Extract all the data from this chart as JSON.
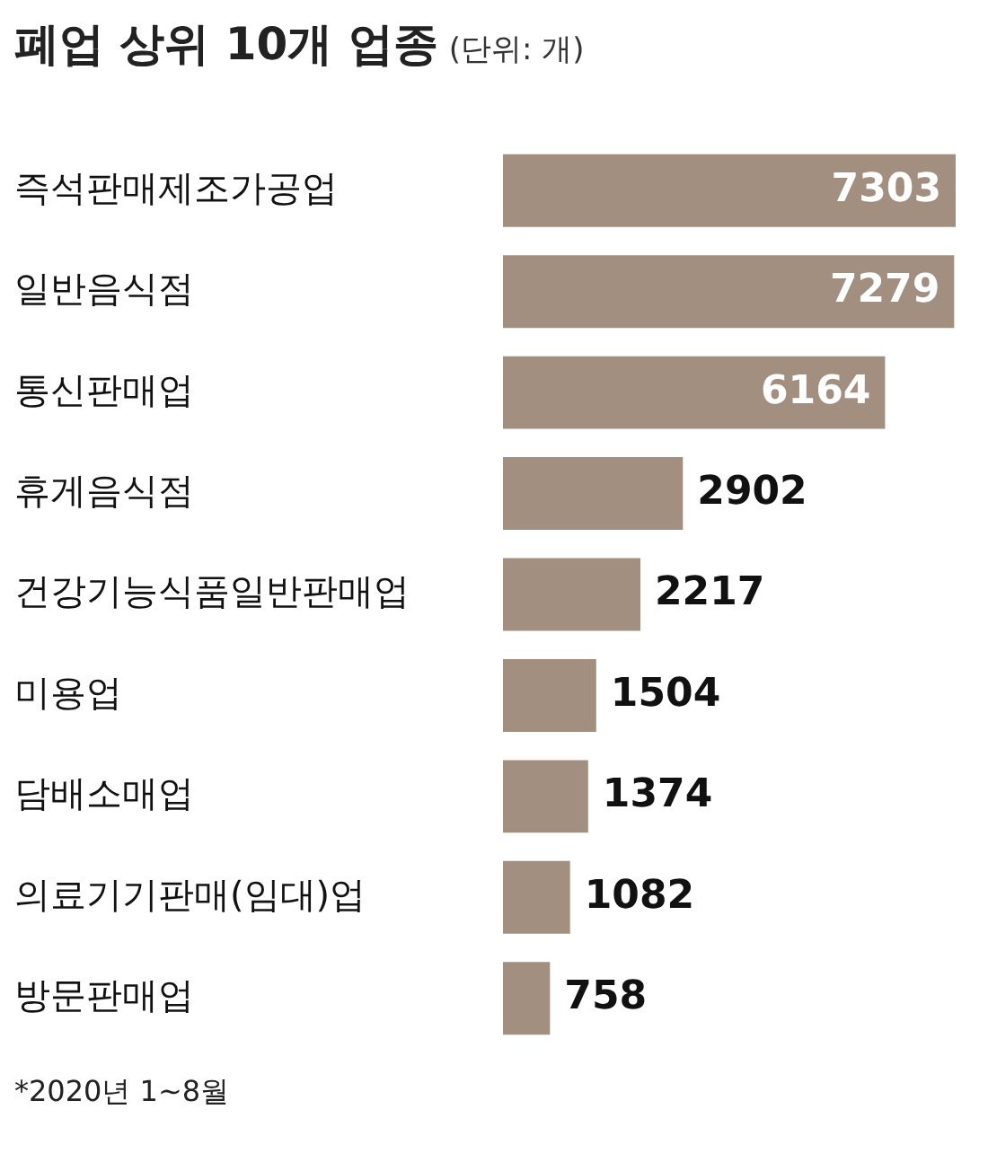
{
  "chart_data": {
    "type": "bar",
    "orientation": "horizontal",
    "title": "폐업 상위 10개 업종",
    "subtitle": "(단위: 개)",
    "categories": [
      "즉석판매제조가공업",
      "일반음식점",
      "통신판매업",
      "휴게음식점",
      "건강기능식품일반판매업",
      "미용업",
      "담배소매업",
      "의료기기판매(임대)업",
      "방문판매업"
    ],
    "values": [
      7303,
      7279,
      6164,
      2902,
      2217,
      1504,
      1374,
      1082,
      758
    ],
    "color": "#a28f80",
    "tick_labels": "y",
    "data_labels": true,
    "annotations": [
      "*2020년 1~8월"
    ]
  }
}
